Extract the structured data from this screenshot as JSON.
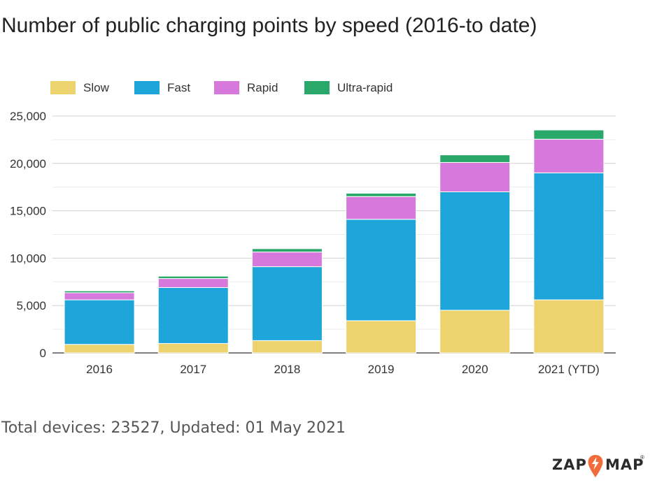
{
  "chart_data": {
    "type": "bar",
    "stacked": true,
    "title": "Number of public charging points by speed (2016-to date)",
    "categories": [
      "2016",
      "2017",
      "2018",
      "2019",
      "2020",
      "2021 (YTD)"
    ],
    "series": [
      {
        "name": "Slow",
        "color": "#ecd36d",
        "values": [
          900,
          1000,
          1300,
          3400,
          4500,
          5600
        ]
      },
      {
        "name": "Fast",
        "color": "#1ea6da",
        "values": [
          4700,
          5900,
          7800,
          10700,
          12500,
          13400
        ]
      },
      {
        "name": "Rapid",
        "color": "#d678dc",
        "values": [
          750,
          950,
          1550,
          2400,
          3100,
          3550
        ]
      },
      {
        "name": "Ultra-rapid",
        "color": "#2aa86a",
        "values": [
          200,
          250,
          350,
          350,
          800,
          977
        ]
      }
    ],
    "yticks": [
      "0",
      "5,000",
      "10,000",
      "15,000",
      "20,000",
      "25,000"
    ],
    "ylim": [
      0,
      25000
    ],
    "ytick_step": 5000,
    "grid": true,
    "legend_position": "top-left"
  },
  "footer": "Total devices: 23527, Updated: 01 May 2021",
  "logo": {
    "left": "ZAP",
    "right": "MAP",
    "reg": "®"
  }
}
